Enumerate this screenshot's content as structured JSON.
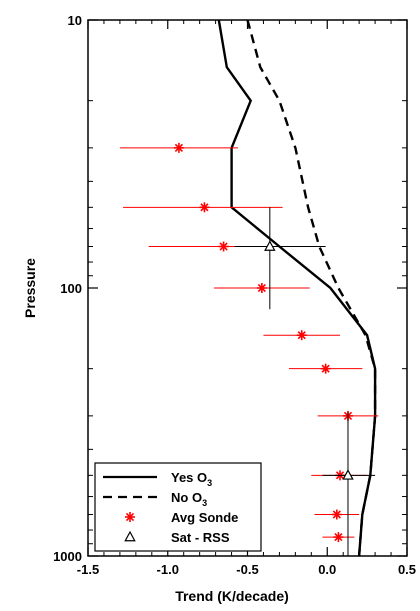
{
  "chart_data": {
    "type": "line",
    "xlabel": "Trend (K/decade)",
    "ylabel": "Pressure",
    "xlim": [
      -1.5,
      0.5
    ],
    "ylim": [
      1000,
      10
    ],
    "yscale": "log",
    "x_ticks": [
      -1.5,
      -1.0,
      -0.5,
      0.0,
      0.5
    ],
    "x_tick_labels": [
      "-1.5",
      "-1.0",
      "-0.5",
      "0.0",
      "0.5"
    ],
    "y_ticks": [
      10,
      100,
      1000
    ],
    "y_tick_labels": [
      "10",
      "100",
      "1000"
    ],
    "legend_position": "bottom-left",
    "series": [
      {
        "name": "Yes O3",
        "style": "solid",
        "color": "#000000",
        "x": [
          -0.68,
          -0.63,
          -0.48,
          -0.6,
          -0.6,
          -0.3,
          0.02,
          0.25,
          0.3,
          0.3,
          0.27,
          0.22,
          0.2
        ],
        "y": [
          10,
          15,
          20,
          30,
          50,
          70,
          100,
          150,
          200,
          300,
          500,
          700,
          1000
        ]
      },
      {
        "name": "No O3",
        "style": "dashed",
        "color": "#000000",
        "x": [
          -0.5,
          -0.42,
          -0.3,
          -0.2,
          -0.12,
          -0.05,
          0.07,
          0.24,
          0.3,
          0.3,
          0.27,
          0.22,
          0.2
        ],
        "y": [
          10,
          15,
          20,
          30,
          50,
          70,
          100,
          150,
          200,
          300,
          500,
          700,
          1000
        ]
      },
      {
        "name": "Avg Sonde",
        "marker": "asterisk",
        "color": "#ff0000",
        "points": [
          {
            "x": -0.93,
            "y": 30,
            "xerr_low": -1.3,
            "xerr_high": -0.56
          },
          {
            "x": -0.77,
            "y": 50,
            "xerr_low": -1.28,
            "xerr_high": -0.28
          },
          {
            "x": -0.65,
            "y": 70,
            "xerr_low": -1.12,
            "xerr_high": -0.18
          },
          {
            "x": -0.41,
            "y": 100,
            "xerr_low": -0.71,
            "xerr_high": -0.11
          },
          {
            "x": -0.16,
            "y": 150,
            "xerr_low": -0.4,
            "xerr_high": 0.08
          },
          {
            "x": -0.01,
            "y": 200,
            "xerr_low": -0.24,
            "xerr_high": 0.22
          },
          {
            "x": 0.13,
            "y": 300,
            "xerr_low": -0.06,
            "xerr_high": 0.32
          },
          {
            "x": 0.08,
            "y": 500,
            "xerr_low": -0.1,
            "xerr_high": 0.25
          },
          {
            "x": 0.06,
            "y": 700,
            "xerr_low": -0.08,
            "xerr_high": 0.2
          },
          {
            "x": 0.07,
            "y": 850,
            "xerr_low": -0.03,
            "xerr_high": 0.17
          }
        ]
      },
      {
        "name": "Sat - RSS",
        "marker": "triangle",
        "color": "#000000",
        "points": [
          {
            "x": -0.36,
            "y": 70,
            "xerr_low": -0.58,
            "xerr_high": -0.01,
            "yerr_low": 50,
            "yerr_high": 120
          },
          {
            "x": 0.13,
            "y": 500,
            "xerr_low": -0.03,
            "xerr_high": 0.3,
            "yerr_low": 290,
            "yerr_high": 1000
          }
        ]
      }
    ],
    "legend": [
      {
        "label": "Yes O",
        "sub": "3",
        "style": "solid"
      },
      {
        "label": "No O",
        "sub": "3",
        "style": "dashed"
      },
      {
        "label": "Avg Sonde",
        "sub": "",
        "style": "asterisk"
      },
      {
        "label": "Sat - RSS",
        "sub": "",
        "style": "triangle"
      }
    ]
  }
}
